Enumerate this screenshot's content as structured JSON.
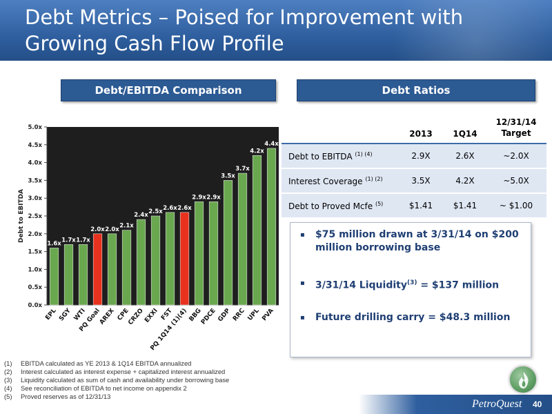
{
  "title": "Debt Metrics – Poised for Improvement with Growing Cash Flow Profile",
  "section_left": "Debt/EBITDA Comparison",
  "section_right": "Debt Ratios",
  "chart_data": {
    "type": "bar",
    "ylabel": "Debt to EBITDA",
    "ylim": [
      0,
      5.0
    ],
    "ytick_labels": [
      "0.0x",
      "0.5x",
      "1.0x",
      "1.5x",
      "2.0x",
      "2.5x",
      "3.0x",
      "3.5x",
      "4.0x",
      "4.5x",
      "5.0x"
    ],
    "categories": [
      "EPL",
      "SGY",
      "WTI",
      "PQ Goal",
      "AREX",
      "CPE",
      "CRZO",
      "EXXI",
      "FST",
      "PQ 1Q14 (1)(4)",
      "BBG",
      "PDCE",
      "GDP",
      "RRC",
      "UPL",
      "PVA"
    ],
    "values": [
      1.6,
      1.7,
      1.7,
      2.0,
      2.0,
      2.1,
      2.4,
      2.5,
      2.6,
      2.6,
      2.9,
      2.9,
      3.5,
      3.7,
      4.2,
      4.4
    ],
    "value_labels": [
      "1.6x",
      "1.7x",
      "1.7x",
      "2.0x",
      "2.0x",
      "2.1x",
      "2.4x",
      "2.5x",
      "2.6x",
      "2.6x",
      "2.9x",
      "2.9x",
      "3.5x",
      "3.7x",
      "4.2x",
      "4.4x"
    ],
    "highlighted": [
      "PQ Goal",
      "PQ 1Q14 (1)(4)"
    ],
    "colors": {
      "bar": "#6aa84f",
      "highlight": "#e8321e",
      "plot_bg": "#1e1e1e"
    }
  },
  "table": {
    "headers": [
      "",
      "2013",
      "1Q14",
      "12/31/14 Target"
    ],
    "header_target_lines": [
      "12/31/14",
      "Target"
    ],
    "rows": [
      {
        "label": "Debt to EBITDA",
        "note": "(1) (4)",
        "v2013": "2.9X",
        "v1q14": "2.6X",
        "target": "~2.0X"
      },
      {
        "label": "Interest Coverage",
        "note": "(1) (2)",
        "v2013": "3.5X",
        "v1q14": "4.2X",
        "target": "~5.0X"
      },
      {
        "label": "Debt to Proved Mcfe",
        "note": "(5)",
        "v2013": "$1.41",
        "v1q14": "$1.41",
        "target": "~ $1.00"
      }
    ]
  },
  "bullets": {
    "b1": "$75 million drawn at 3/31/14 on $200 million borrowing base",
    "b2_pre": "3/31/14 Liquidity",
    "b2_sup": "(3)",
    "b2_post": " = $137 million",
    "b3": "Future drilling carry = $48.3 million"
  },
  "footnotes": [
    {
      "num": "(1)",
      "text": "EBITDA calculated as YE 2013 & 1Q14 EBITDA annualized"
    },
    {
      "num": "(2)",
      "text": "Interest calculated as interest expense + capitalized interest annualized"
    },
    {
      "num": "(3)",
      "text": "Liquidity calculated as sum of cash and availability under borrowing base"
    },
    {
      "num": "(4)",
      "text": "See reconciliation of  EBITDA to net income on appendix 2"
    },
    {
      "num": "(5)",
      "text": "Proved reserves as of 12/31/13"
    }
  ],
  "logo": "PetroQuest",
  "page_number": "40",
  "icons": {
    "flame_logo": "flame-icon",
    "bullet": "square-bullet-icon"
  }
}
